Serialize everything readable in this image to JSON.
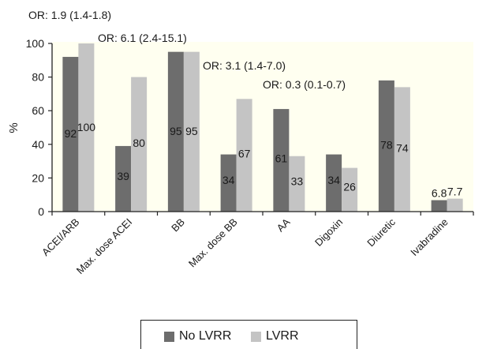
{
  "chart_data": {
    "type": "bar",
    "categories": [
      "ACEI/ARB",
      "Max. dose ACEI",
      "BB",
      "Max. dose BB",
      "AA",
      "Digoxin",
      "Diuretic",
      "Ivabradine"
    ],
    "series": [
      {
        "name": "No LVRR",
        "values": [
          92,
          39,
          95,
          34,
          61,
          34,
          78,
          6.8
        ],
        "labels": [
          "92",
          "39",
          "95",
          "34",
          "61",
          "34",
          "78",
          "6.8"
        ],
        "color": "#6d6d6d"
      },
      {
        "name": "LVRR",
        "values": [
          100,
          80,
          95,
          67,
          33,
          26,
          74,
          7.7
        ],
        "labels": [
          "100",
          "80",
          "95",
          "67",
          "33",
          "26",
          "74",
          "7.7"
        ],
        "color": "#c4c4c4"
      }
    ],
    "ylabel": "%",
    "ylim": [
      0,
      100
    ],
    "yticks": [
      "0",
      "20",
      "40",
      "60",
      "80",
      "100"
    ],
    "annotations": [
      "OR: 1.9 (1.4-1.8)",
      "OR: 6.1 (2.4-15.1)",
      "OR: 3.1 (1.4-7.0)",
      "OR: 0.3 (0.1-0.7)"
    ],
    "plot_background": "#fffff0",
    "legend": "bottom-center"
  }
}
